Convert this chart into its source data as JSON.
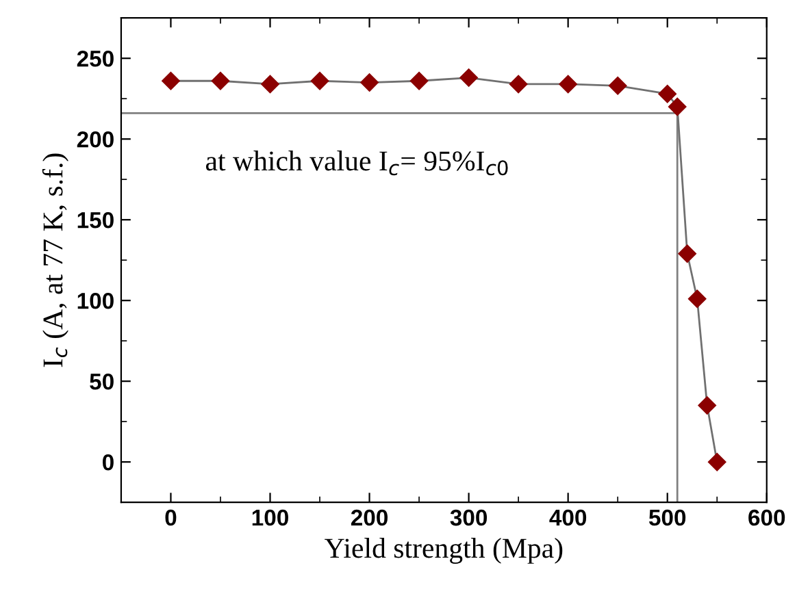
{
  "chart_data": {
    "type": "line",
    "xlabel": "Yield strength (Mpa)",
    "ylabel": "I$_{c}$ (A, at 77 K, s.f.)",
    "annotations": [
      "at which value I$_{c}$= 95%I$_{c0}$"
    ],
    "series": [
      {
        "color": "#8b0000",
        "marker": "diamond",
        "x": [
          0,
          50,
          100,
          150,
          200,
          250,
          300,
          350,
          400,
          450,
          500,
          510,
          520,
          530,
          540,
          550
        ],
        "values": [
          236,
          236,
          234,
          236,
          235,
          236,
          238,
          234,
          234,
          233,
          228,
          220,
          129,
          101,
          35,
          0
        ]
      },
      {
        "color": "#808080",
        "marker": "none",
        "x": [
          -50,
          510,
          510
        ],
        "values": [
          216,
          216,
          -25
        ]
      }
    ],
    "xlim": [
      -50,
      600
    ],
    "ylim": [
      -25,
      275
    ],
    "xticks": [
      0,
      100,
      200,
      300,
      400,
      500,
      600
    ],
    "yticks": [
      0,
      50,
      100,
      150,
      200,
      250
    ],
    "grid": false,
    "legend": false
  }
}
